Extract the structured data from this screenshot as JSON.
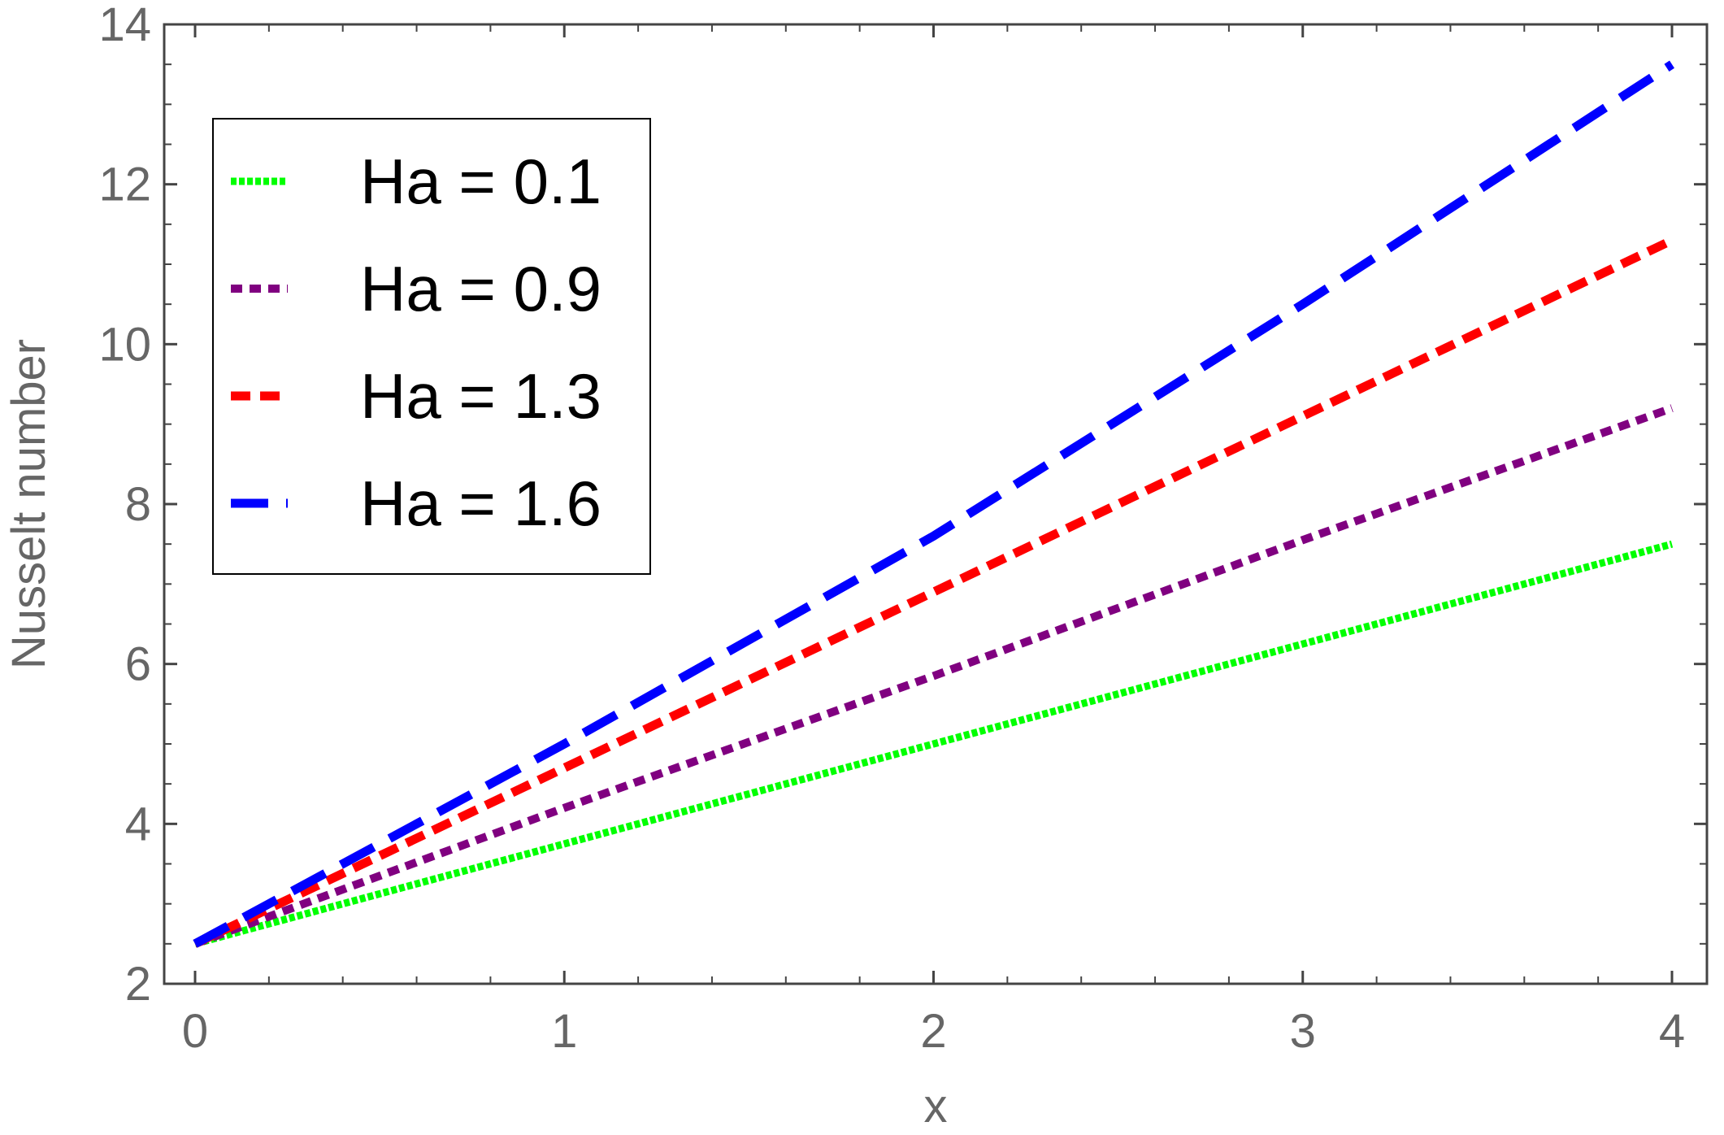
{
  "chart_data": {
    "type": "line",
    "xlabel": "x",
    "ylabel": "Nusselt number",
    "xlim": [
      0,
      4
    ],
    "ylim": [
      2,
      14
    ],
    "x_ticks": [
      0,
      1,
      2,
      3,
      4
    ],
    "y_ticks": [
      2,
      4,
      6,
      8,
      10,
      12,
      14
    ],
    "x_tick_labels": [
      "0",
      "1",
      "2",
      "3",
      "4"
    ],
    "y_tick_labels": [
      "2",
      "4",
      "6",
      "8",
      "10",
      "12",
      "14"
    ],
    "grid": false,
    "legend_position": "top-left",
    "series": [
      {
        "name": "Ha = 0.1",
        "color": "#00ff00",
        "style": "dotted",
        "x": [
          0,
          1,
          2,
          3,
          4
        ],
        "y": [
          2.5,
          3.75,
          5.0,
          6.25,
          7.5
        ]
      },
      {
        "name": "Ha = 0.9",
        "color": "#800080",
        "style": "short-dash",
        "x": [
          0,
          1,
          2,
          3,
          4
        ],
        "y": [
          2.5,
          4.2,
          5.85,
          7.55,
          9.2
        ]
      },
      {
        "name": "Ha = 1.3",
        "color": "#ff0000",
        "style": "medium-dash",
        "x": [
          0,
          1,
          2,
          3,
          4
        ],
        "y": [
          2.5,
          4.7,
          6.9,
          9.1,
          11.3
        ]
      },
      {
        "name": "Ha = 1.6",
        "color": "#0000ff",
        "style": "long-dash",
        "x": [
          0,
          1,
          2,
          3,
          4
        ],
        "y": [
          2.5,
          5.0,
          7.6,
          10.5,
          13.5
        ]
      }
    ]
  }
}
